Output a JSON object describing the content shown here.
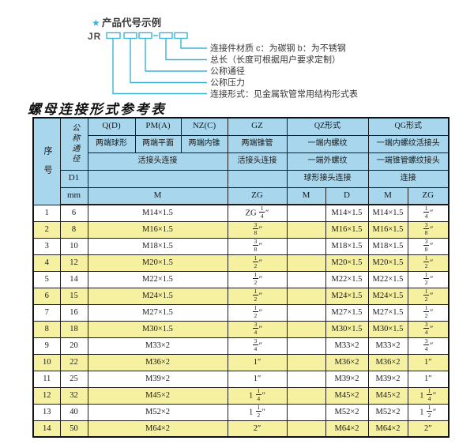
{
  "colors": {
    "accent": "#3cb4d8",
    "header_bg": "#a8d6ec",
    "row_alt_bg": "#f6f1a1",
    "border": "#1c1c1c"
  },
  "diagram": {
    "star": "★",
    "title": "产品代号示例",
    "code_prefix": "JR",
    "labels": [
      "连接件材质  c：为碳钢  b：为不锈钢",
      "总长（长度可根据用户要求定制）",
      "公称通径",
      "公称压力",
      "连接形式：见金属软管常用结构形式表"
    ]
  },
  "table": {
    "title": "螺母连接形式参考表",
    "header": {
      "seq": "序号",
      "dn": "公称通径",
      "d1": "D1",
      "mm": "mm",
      "col_q": "Q(D)",
      "col_pm": "PM(A)",
      "col_nz": "NZ(C)",
      "col_gz": "GZ",
      "col_qz": "QZ形式",
      "col_qg": "QG形式",
      "sub_q": "两端球形",
      "sub_pm": "两端平面",
      "sub_nz": "两端内锥",
      "sub_gz": "两端锥管",
      "sub_qz": "一端内螺纹",
      "sub_qg": "一端内螺纹活接头",
      "conn_qpn": "活接头连接",
      "conn_gz": "活接头连接",
      "conn_qz2": "一端外螺纹",
      "conn_qg2": "一端锥管螺纹接头",
      "conn_qz3": "球形接头连接",
      "conn_qg3": "连接",
      "unit_m": "M",
      "unit_gz_zg": "ZG",
      "unit_qz_m": "M",
      "unit_qz_d": "D",
      "unit_qg_m": "M",
      "unit_qg_zg": "ZG"
    },
    "rows": [
      {
        "seq": "1",
        "dn": "6",
        "m": "M14×1.5",
        "gz": "ZG 1/4″",
        "qz_m": "",
        "qz_d": "M14×1.5",
        "qg_m": "M14×1.5",
        "qg_zg": "1/4″"
      },
      {
        "seq": "2",
        "dn": "8",
        "m": "M16×1.5",
        "gz": "3/8″",
        "qz_m": "",
        "qz_d": "M16×1.5",
        "qg_m": "M16×1.5",
        "qg_zg": "3/8″"
      },
      {
        "seq": "3",
        "dn": "10",
        "m": "M18×1.5",
        "gz": "3/8″",
        "qz_m": "",
        "qz_d": "M18×1.5",
        "qg_m": "M18×1.5",
        "qg_zg": "3/8″"
      },
      {
        "seq": "4",
        "dn": "12",
        "m": "M20×1.5",
        "gz": "1/2″",
        "qz_m": "",
        "qz_d": "M20×1.5",
        "qg_m": "M20×1.5",
        "qg_zg": "1/2″"
      },
      {
        "seq": "5",
        "dn": "14",
        "m": "M22×1.5",
        "gz": "1/2″",
        "qz_m": "",
        "qz_d": "M22×1.5",
        "qg_m": "M22×1.5",
        "qg_zg": "1/2″"
      },
      {
        "seq": "6",
        "dn": "15",
        "m": "M24×1.5",
        "gz": "1/2″",
        "qz_m": "",
        "qz_d": "M24×1.5",
        "qg_m": "M24×1.5",
        "qg_zg": "1/2″"
      },
      {
        "seq": "7",
        "dn": "16",
        "m": "M27×1.5",
        "gz": "1/2″",
        "qz_m": "",
        "qz_d": "M27×1.5",
        "qg_m": "M27×1.5",
        "qg_zg": "1/2″"
      },
      {
        "seq": "8",
        "dn": "18",
        "m": "M30×1.5",
        "gz": "3/4″",
        "qz_m": "",
        "qz_d": "M30×1.5",
        "qg_m": "M30×1.5",
        "qg_zg": "3/4″"
      },
      {
        "seq": "9",
        "dn": "20",
        "m": "M33×2",
        "gz": "3/4″",
        "qz_m": "",
        "qz_d": "M33×2",
        "qg_m": "M33×2",
        "qg_zg": "3/4″"
      },
      {
        "seq": "10",
        "dn": "22",
        "m": "M36×2",
        "gz": "1″",
        "qz_m": "",
        "qz_d": "M36×2",
        "qg_m": "M36×2",
        "qg_zg": "1″"
      },
      {
        "seq": "11",
        "dn": "25",
        "m": "M39×2",
        "gz": "1″",
        "qz_m": "",
        "qz_d": "M39×2",
        "qg_m": "M39×2",
        "qg_zg": "1″"
      },
      {
        "seq": "12",
        "dn": "32",
        "m": "M45×2",
        "gz": "1 1/4″",
        "qz_m": "",
        "qz_d": "M45×2",
        "qg_m": "M45×2",
        "qg_zg": "1 1/4″"
      },
      {
        "seq": "13",
        "dn": "40",
        "m": "M52×2",
        "gz": "1 1/2″",
        "qz_m": "",
        "qz_d": "M52×2",
        "qg_m": "M52×2",
        "qg_zg": "1 1/2″"
      },
      {
        "seq": "14",
        "dn": "50",
        "m": "M64×2",
        "gz": "2″",
        "qz_m": "",
        "qz_d": "M64×2",
        "qg_m": "M64×2",
        "qg_zg": "2″"
      }
    ]
  }
}
